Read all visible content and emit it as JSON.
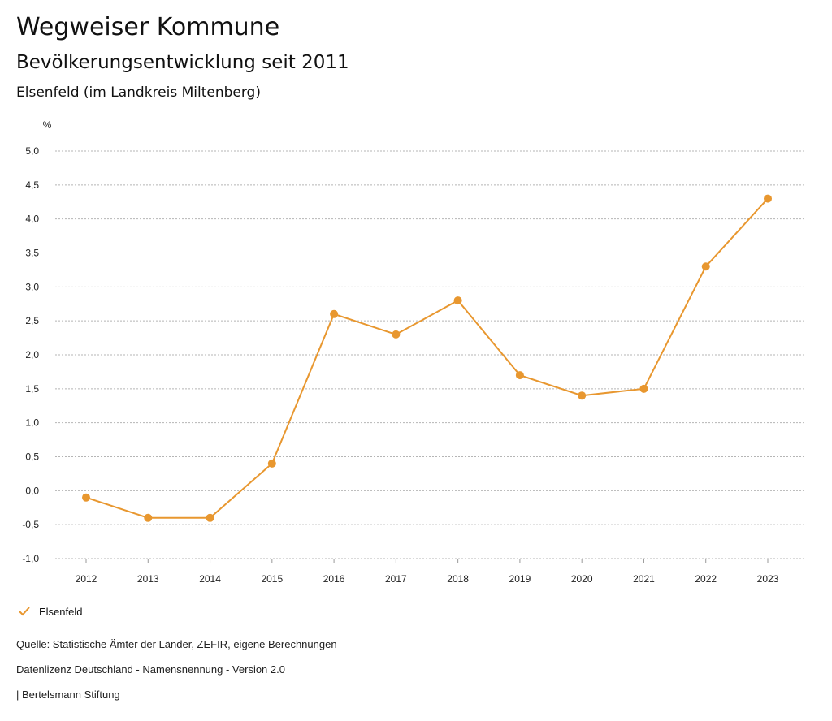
{
  "header": {
    "title": "Wegweiser Kommune",
    "subtitle": "Bevölkerungsentwicklung seit 2011",
    "region": "Elsenfeld (im Landkreis Miltenberg)"
  },
  "chart_data": {
    "type": "line",
    "title": "Bevölkerungsentwicklung seit 2011",
    "ylabel": "%",
    "xlabel": "",
    "ylim": [
      -1.0,
      5.0
    ],
    "ytick_step": 0.5,
    "grid": true,
    "legend_placement": "bottom-left",
    "categories": [
      "2012",
      "2013",
      "2014",
      "2015",
      "2016",
      "2017",
      "2018",
      "2019",
      "2020",
      "2021",
      "2022",
      "2023"
    ],
    "series": [
      {
        "name": "Elsenfeld",
        "color": "#E8972F",
        "values": [
          -0.1,
          -0.4,
          -0.4,
          0.4,
          2.6,
          2.3,
          2.8,
          1.7,
          1.4,
          1.5,
          3.3,
          4.3
        ]
      }
    ]
  },
  "footer": {
    "source": "Quelle: Statistische Ämter der Länder, ZEFIR, eigene Berechnungen",
    "license": "Datenlizenz Deutschland - Namensnennung - Version 2.0",
    "publisher": "| Bertelsmann Stiftung"
  }
}
